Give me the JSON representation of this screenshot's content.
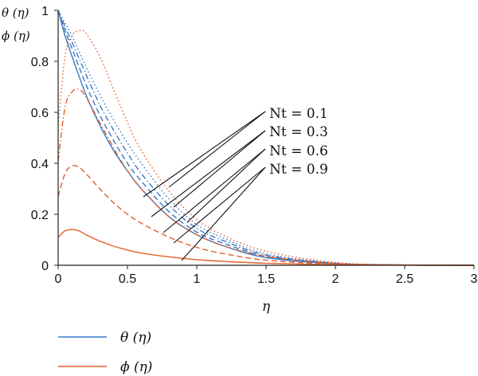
{
  "chart_data": {
    "type": "line",
    "title": "",
    "xlabel": "η",
    "ylabel_lines": [
      "θ (η)",
      "ϕ (η)"
    ],
    "xlim": [
      0,
      3
    ],
    "ylim": [
      0,
      1
    ],
    "xticks": [
      0,
      0.5,
      1,
      1.5,
      2,
      2.5,
      3
    ],
    "xtick_labels": [
      "0",
      "0.5",
      "1",
      "1.5",
      "2",
      "2.5",
      "3"
    ],
    "yticks": [
      0,
      0.2,
      0.4,
      0.6,
      0.8,
      1
    ],
    "ytick_labels": [
      "0",
      "0.2",
      "0.4",
      "0.6",
      "0.8",
      "1"
    ],
    "grid": false,
    "legend": {
      "placement": "bottom-left",
      "entries": [
        {
          "label": "θ (η)",
          "color": "#3a78c3"
        },
        {
          "label": "ϕ (η)",
          "color": "#e0612a"
        }
      ]
    },
    "annotations": [
      "Nt = 0.1",
      "Nt = 0.3",
      "Nt = 0.6",
      "Nt = 0.9"
    ],
    "colors": {
      "theta": "#3a78c3",
      "phi": "#e0612a",
      "axis": "#222222"
    },
    "series": [
      {
        "group": "theta",
        "Nt": 0.1,
        "dash": "solid",
        "x": [
          0,
          0.05,
          0.1,
          0.2,
          0.3,
          0.4,
          0.5,
          0.6,
          0.8,
          1.0,
          1.2,
          1.5,
          2.0,
          2.5,
          3.0
        ],
        "y": [
          1,
          0.9,
          0.82,
          0.67,
          0.55,
          0.45,
          0.37,
          0.3,
          0.19,
          0.12,
          0.075,
          0.03,
          0.006,
          0.001,
          0
        ]
      },
      {
        "group": "theta",
        "Nt": 0.3,
        "dash": "dash",
        "x": [
          0,
          0.05,
          0.1,
          0.2,
          0.3,
          0.4,
          0.5,
          0.6,
          0.8,
          1.0,
          1.2,
          1.5,
          2.0,
          2.5,
          3.0
        ],
        "y": [
          1,
          0.92,
          0.85,
          0.71,
          0.59,
          0.49,
          0.4,
          0.33,
          0.21,
          0.13,
          0.085,
          0.035,
          0.007,
          0.001,
          0
        ]
      },
      {
        "group": "theta",
        "Nt": 0.6,
        "dash": "dashdot",
        "x": [
          0,
          0.05,
          0.1,
          0.2,
          0.3,
          0.4,
          0.5,
          0.6,
          0.8,
          1.0,
          1.2,
          1.5,
          2.0,
          2.5,
          3.0
        ],
        "y": [
          1,
          0.935,
          0.875,
          0.75,
          0.63,
          0.53,
          0.44,
          0.36,
          0.235,
          0.145,
          0.095,
          0.04,
          0.008,
          0.001,
          0
        ]
      },
      {
        "group": "theta",
        "Nt": 0.9,
        "dash": "dot",
        "x": [
          0,
          0.05,
          0.1,
          0.2,
          0.3,
          0.4,
          0.5,
          0.6,
          0.8,
          1.0,
          1.2,
          1.5,
          2.0,
          2.5,
          3.0
        ],
        "y": [
          1,
          0.95,
          0.9,
          0.78,
          0.67,
          0.57,
          0.48,
          0.4,
          0.26,
          0.16,
          0.105,
          0.045,
          0.009,
          0.001,
          0
        ]
      },
      {
        "group": "phi",
        "Nt": 0.1,
        "dash": "solid",
        "x": [
          0,
          0.05,
          0.1,
          0.15,
          0.2,
          0.3,
          0.4,
          0.5,
          0.6,
          0.8,
          1.0,
          1.2,
          1.5,
          2.0,
          2.5,
          3.0
        ],
        "y": [
          0.11,
          0.135,
          0.14,
          0.135,
          0.12,
          0.095,
          0.075,
          0.06,
          0.048,
          0.033,
          0.022,
          0.015,
          0.008,
          0.002,
          0.0005,
          0
        ]
      },
      {
        "group": "phi",
        "Nt": 0.3,
        "dash": "dash",
        "x": [
          0,
          0.05,
          0.1,
          0.15,
          0.2,
          0.3,
          0.4,
          0.5,
          0.6,
          0.8,
          1.0,
          1.2,
          1.5,
          2.0,
          2.5,
          3.0
        ],
        "y": [
          0.27,
          0.36,
          0.39,
          0.385,
          0.36,
          0.3,
          0.245,
          0.2,
          0.165,
          0.11,
          0.07,
          0.045,
          0.02,
          0.004,
          0.001,
          0
        ]
      },
      {
        "group": "phi",
        "Nt": 0.6,
        "dash": "dashdot",
        "x": [
          0,
          0.05,
          0.1,
          0.15,
          0.2,
          0.3,
          0.4,
          0.5,
          0.6,
          0.8,
          1.0,
          1.2,
          1.5,
          2.0,
          2.5,
          3.0
        ],
        "y": [
          0.41,
          0.62,
          0.68,
          0.69,
          0.66,
          0.56,
          0.46,
          0.37,
          0.3,
          0.19,
          0.12,
          0.075,
          0.035,
          0.007,
          0.001,
          0
        ]
      },
      {
        "group": "phi",
        "Nt": 0.9,
        "dash": "dot",
        "x": [
          0,
          0.05,
          0.1,
          0.15,
          0.2,
          0.3,
          0.4,
          0.5,
          0.6,
          0.8,
          1.0,
          1.2,
          1.5,
          2.0,
          2.5,
          3.0
        ],
        "y": [
          0.55,
          0.82,
          0.9,
          0.92,
          0.91,
          0.82,
          0.69,
          0.56,
          0.45,
          0.29,
          0.18,
          0.115,
          0.055,
          0.011,
          0.002,
          0
        ]
      }
    ]
  }
}
